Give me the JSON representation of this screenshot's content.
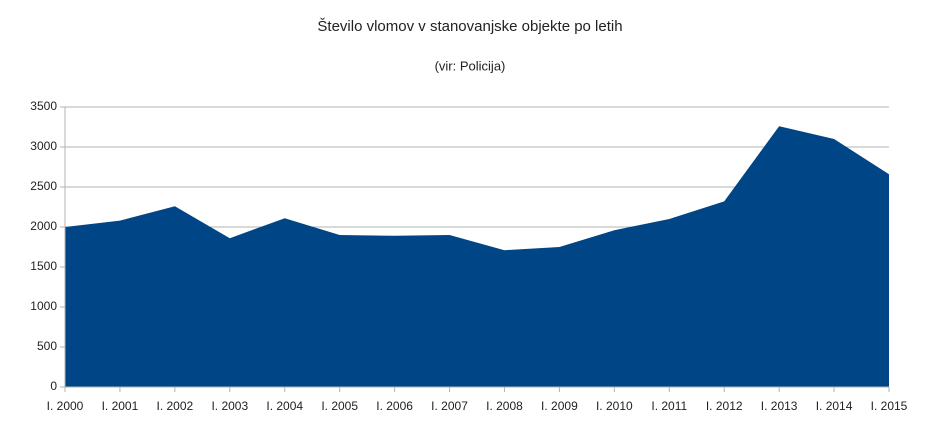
{
  "chart_data": {
    "type": "area",
    "title": "Število vlomov v stanovanjske objekte po letih",
    "subtitle": "(vir: Policija)",
    "categories": [
      "I. 2000",
      "I. 2001",
      "I. 2002",
      "I. 2003",
      "I. 2004",
      "I. 2005",
      "I. 2006",
      "I. 2007",
      "I. 2008",
      "I. 2009",
      "I. 2010",
      "I. 2011",
      "I. 2012",
      "I. 2013",
      "I. 2014",
      "I. 2015"
    ],
    "values": [
      2000,
      2080,
      2260,
      1860,
      2110,
      1900,
      1890,
      1900,
      1710,
      1750,
      1960,
      2100,
      2320,
      3260,
      3100,
      2660
    ],
    "color": "#004586",
    "ylim": [
      0,
      3500
    ],
    "yticks": [
      0,
      500,
      1000,
      1500,
      2000,
      2500,
      3000,
      3500
    ],
    "grid": true
  }
}
